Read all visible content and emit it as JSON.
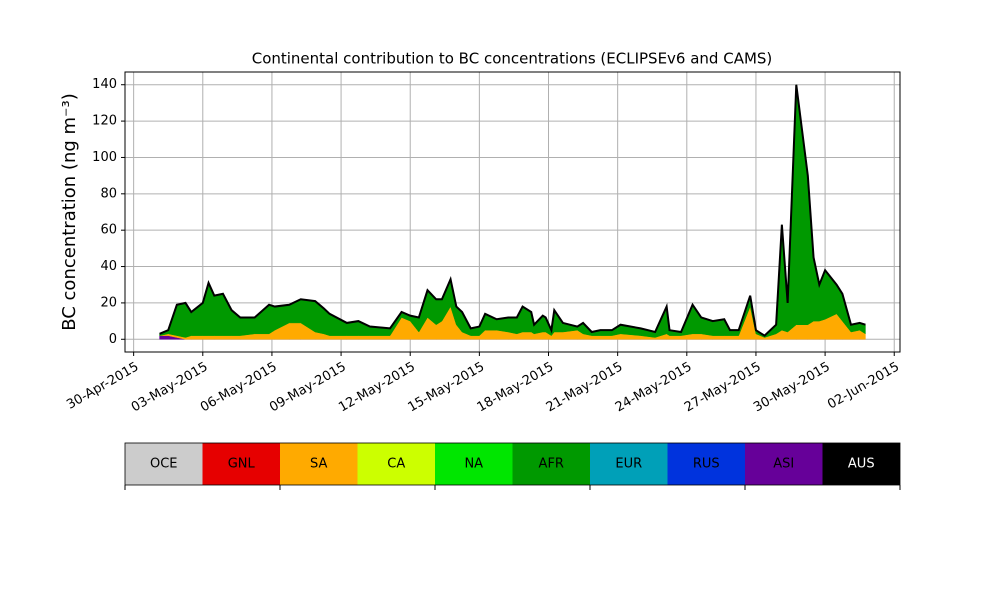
{
  "chart_data": {
    "type": "area",
    "title": "Continental contribution to BC concentrations (ECLIPSEv6 and CAMS)",
    "y_label": "BC concentration (ng m⁻³)",
    "x": [
      "2015-05-01T03:00",
      "2015-05-01T12:00",
      "2015-05-01T21:00",
      "2015-05-02T06:00",
      "2015-05-02T12:00",
      "2015-05-03T00:00",
      "2015-05-03T06:00",
      "2015-05-03T12:00",
      "2015-05-03T21:00",
      "2015-05-04T06:00",
      "2015-05-04T15:00",
      "2015-05-05T06:00",
      "2015-05-05T21:00",
      "2015-05-06T03:00",
      "2015-05-06T18:00",
      "2015-05-07T06:00",
      "2015-05-07T21:00",
      "2015-05-08T06:00",
      "2015-05-08T12:00",
      "2015-05-09T06:00",
      "2015-05-09T18:00",
      "2015-05-10T06:00",
      "2015-05-11T03:00",
      "2015-05-11T15:00",
      "2015-05-12T00:00",
      "2015-05-12T09:00",
      "2015-05-12T18:00",
      "2015-05-13T03:00",
      "2015-05-13T09:00",
      "2015-05-13T18:00",
      "2015-05-14T00:00",
      "2015-05-14T06:00",
      "2015-05-14T15:00",
      "2015-05-15T00:00",
      "2015-05-15T06:00",
      "2015-05-15T18:00",
      "2015-05-16T06:00",
      "2015-05-16T15:00",
      "2015-05-16T21:00",
      "2015-05-17T06:00",
      "2015-05-17T09:00",
      "2015-05-17T18:00",
      "2015-05-17T21:00",
      "2015-05-18T03:00",
      "2015-05-18T06:00",
      "2015-05-18T15:00",
      "2015-05-19T06:00",
      "2015-05-19T12:00",
      "2015-05-19T21:00",
      "2015-05-20T06:00",
      "2015-05-20T18:00",
      "2015-05-21T03:00",
      "2015-05-22T00:00",
      "2015-05-22T15:00",
      "2015-05-23T03:00",
      "2015-05-23T06:00",
      "2015-05-23T18:00",
      "2015-05-24T06:00",
      "2015-05-24T15:00",
      "2015-05-25T03:00",
      "2015-05-25T15:00",
      "2015-05-25T21:00",
      "2015-05-26T06:00",
      "2015-05-26T18:00",
      "2015-05-27T00:00",
      "2015-05-27T09:00",
      "2015-05-27T21:00",
      "2015-05-28T03:00",
      "2015-05-28T09:00",
      "2015-05-28T18:00",
      "2015-05-29T06:00",
      "2015-05-29T12:00",
      "2015-05-29T18:00",
      "2015-05-30T00:00",
      "2015-05-30T12:00",
      "2015-05-30T18:00",
      "2015-05-31T03:00",
      "2015-05-31T12:00",
      "2015-05-31T18:00"
    ],
    "series": [
      {
        "name": "ASI",
        "color": "#660099",
        "values": [
          2,
          2,
          1,
          0,
          0,
          0,
          0,
          0,
          0,
          0,
          0,
          0,
          0,
          0,
          0,
          0,
          0,
          0,
          0,
          0,
          0,
          0,
          0,
          0,
          0,
          0,
          0,
          0,
          0,
          0,
          0,
          0,
          0,
          0,
          0,
          0,
          0,
          0,
          0,
          0,
          0,
          0,
          0,
          0,
          0,
          0,
          0,
          0,
          0,
          0,
          0,
          0,
          0,
          0,
          0,
          0,
          0,
          0,
          0,
          0,
          0,
          0,
          0,
          0,
          0,
          0,
          0,
          0,
          0,
          0,
          0,
          0,
          0,
          0,
          0,
          0,
          0,
          0,
          0
        ]
      },
      {
        "name": "SA",
        "color": "#ffaa00",
        "values": [
          0,
          1,
          1,
          1,
          2,
          2,
          2,
          2,
          2,
          2,
          2,
          3,
          3,
          5,
          9,
          9,
          4,
          3,
          2,
          2,
          2,
          2,
          2,
          12,
          10,
          4,
          12,
          8,
          10,
          18,
          8,
          4,
          2,
          2,
          5,
          5,
          4,
          3,
          4,
          4,
          3,
          4,
          4,
          2,
          4,
          4,
          5,
          3,
          2,
          2,
          2,
          3,
          2,
          1,
          3,
          2,
          2,
          3,
          3,
          2,
          2,
          2,
          2,
          18,
          3,
          1,
          3,
          5,
          4,
          8,
          8,
          10,
          10,
          11,
          14,
          10,
          4,
          5,
          3
        ]
      },
      {
        "name": "AFR",
        "color": "#009900",
        "values": [
          1,
          2,
          17,
          19,
          13,
          18,
          29,
          22,
          23,
          14,
          10,
          9,
          16,
          13,
          10,
          13,
          17,
          14,
          12,
          7,
          8,
          5,
          4,
          3,
          3,
          8,
          15,
          14,
          12,
          15,
          10,
          11,
          4,
          5,
          9,
          6,
          8,
          9,
          14,
          11,
          5,
          9,
          8,
          3,
          12,
          5,
          2,
          6,
          2,
          3,
          3,
          5,
          4,
          3,
          15,
          3,
          2,
          16,
          9,
          8,
          9,
          3,
          3,
          6,
          2,
          1,
          5,
          58,
          16,
          132,
          82,
          35,
          20,
          27,
          16,
          15,
          4,
          4,
          5
        ]
      }
    ],
    "outline_color": "#000000",
    "xlim": [
      "2015-04-29T15:00",
      "2015-06-02T06:00"
    ],
    "xticks": [
      {
        "value": "2015-04-30T00:00",
        "label": "30-Apr-2015"
      },
      {
        "value": "2015-05-03T00:00",
        "label": "03-May-2015"
      },
      {
        "value": "2015-05-06T00:00",
        "label": "06-May-2015"
      },
      {
        "value": "2015-05-09T00:00",
        "label": "09-May-2015"
      },
      {
        "value": "2015-05-12T00:00",
        "label": "12-May-2015"
      },
      {
        "value": "2015-05-15T00:00",
        "label": "15-May-2015"
      },
      {
        "value": "2015-05-18T00:00",
        "label": "18-May-2015"
      },
      {
        "value": "2015-05-21T00:00",
        "label": "21-May-2015"
      },
      {
        "value": "2015-05-24T00:00",
        "label": "24-May-2015"
      },
      {
        "value": "2015-05-27T00:00",
        "label": "27-May-2015"
      },
      {
        "value": "2015-05-30T00:00",
        "label": "30-May-2015"
      },
      {
        "value": "2015-06-02T00:00",
        "label": "02-Jun-2015"
      }
    ],
    "ylim": [
      -7,
      147
    ],
    "yticks": [
      0,
      20,
      40,
      60,
      80,
      100,
      120,
      140
    ],
    "grid": true,
    "legend": [
      {
        "name": "OCE",
        "color": "#cccccc"
      },
      {
        "name": "GNL",
        "color": "#e60000"
      },
      {
        "name": "SA",
        "color": "#ffaa00"
      },
      {
        "name": "CA",
        "color": "#ccff00"
      },
      {
        "name": "NA",
        "color": "#00e600"
      },
      {
        "name": "AFR",
        "color": "#009900"
      },
      {
        "name": "EUR",
        "color": "#00a0b8"
      },
      {
        "name": "RUS",
        "color": "#0033dd"
      },
      {
        "name": "ASI",
        "color": "#660099"
      },
      {
        "name": "AUS",
        "color": "#000000"
      }
    ]
  }
}
